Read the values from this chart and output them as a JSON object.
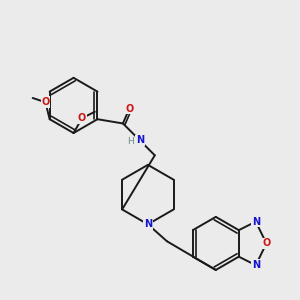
{
  "bg_color": "#ebebeb",
  "bond_color": "#1a1a1a",
  "atom_colors": {
    "N": "#1414cc",
    "O": "#cc1414",
    "H": "#6a8a8a",
    "C": "#1a1a1a"
  }
}
